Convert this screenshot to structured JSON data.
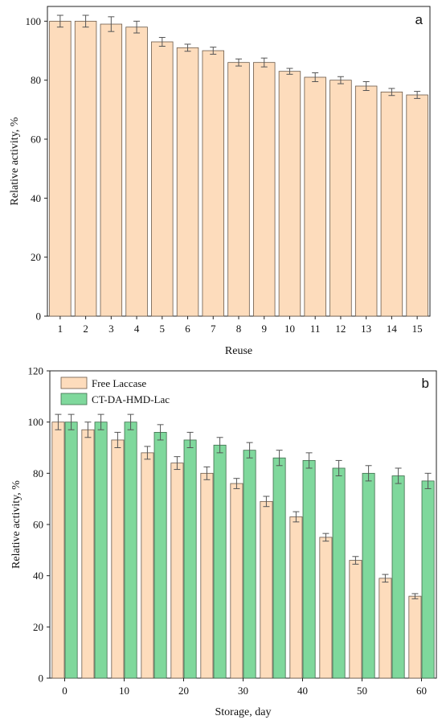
{
  "colors": {
    "orange_fill": "#fddcbc",
    "orange_stroke": "#6b5a4a",
    "green_fill": "#7fd89c",
    "green_stroke": "#3f6b4c",
    "axis": "#222222",
    "error_bar": "#555555"
  },
  "chart_data": [
    {
      "type": "bar",
      "panel": "a",
      "xlabel": "Reuse",
      "ylabel": "Relative activity, %",
      "ylim": [
        0,
        105
      ],
      "yticks": [
        0,
        20,
        40,
        60,
        80,
        100
      ],
      "categories": [
        "1",
        "2",
        "3",
        "4",
        "5",
        "6",
        "7",
        "8",
        "9",
        "10",
        "11",
        "12",
        "13",
        "14",
        "15"
      ],
      "values": [
        100,
        100,
        99,
        98,
        93,
        91,
        90,
        86,
        86,
        83,
        81,
        80,
        78,
        76,
        75
      ],
      "errors": [
        2.0,
        2.0,
        2.5,
        2.0,
        1.5,
        1.2,
        1.2,
        1.2,
        1.5,
        1.0,
        1.5,
        1.2,
        1.5,
        1.2,
        1.2
      ],
      "grid": false
    },
    {
      "type": "bar",
      "panel": "b",
      "xlabel": "Storage, day",
      "ylabel": "Relative activity, %",
      "ylim": [
        0,
        120
      ],
      "yticks": [
        0,
        20,
        40,
        60,
        80,
        100,
        120
      ],
      "xlim": [
        -2.5,
        62.5
      ],
      "xticks": [
        0,
        10,
        20,
        30,
        40,
        50,
        60
      ],
      "x": [
        0,
        5,
        10,
        15,
        20,
        25,
        30,
        35,
        40,
        45,
        50,
        55,
        60
      ],
      "legend_position": "top-left",
      "series": [
        {
          "name": "Free Laccase",
          "values": [
            100,
            97,
            93,
            88,
            84,
            80,
            76,
            69,
            63,
            55,
            46,
            39,
            32
          ],
          "errors": [
            3.0,
            3.0,
            3.0,
            2.5,
            2.5,
            2.5,
            2.0,
            2.0,
            2.0,
            1.5,
            1.5,
            1.5,
            1.0
          ]
        },
        {
          "name": "CT-DA-HMD-Lac",
          "values": [
            100,
            100,
            100,
            96,
            93,
            91,
            89,
            86,
            85,
            82,
            80,
            79,
            77
          ],
          "errors": [
            3.0,
            3.0,
            3.0,
            3.0,
            3.0,
            3.0,
            3.0,
            3.0,
            3.0,
            3.0,
            3.0,
            3.0,
            3.0
          ]
        }
      ],
      "grid": false
    }
  ]
}
